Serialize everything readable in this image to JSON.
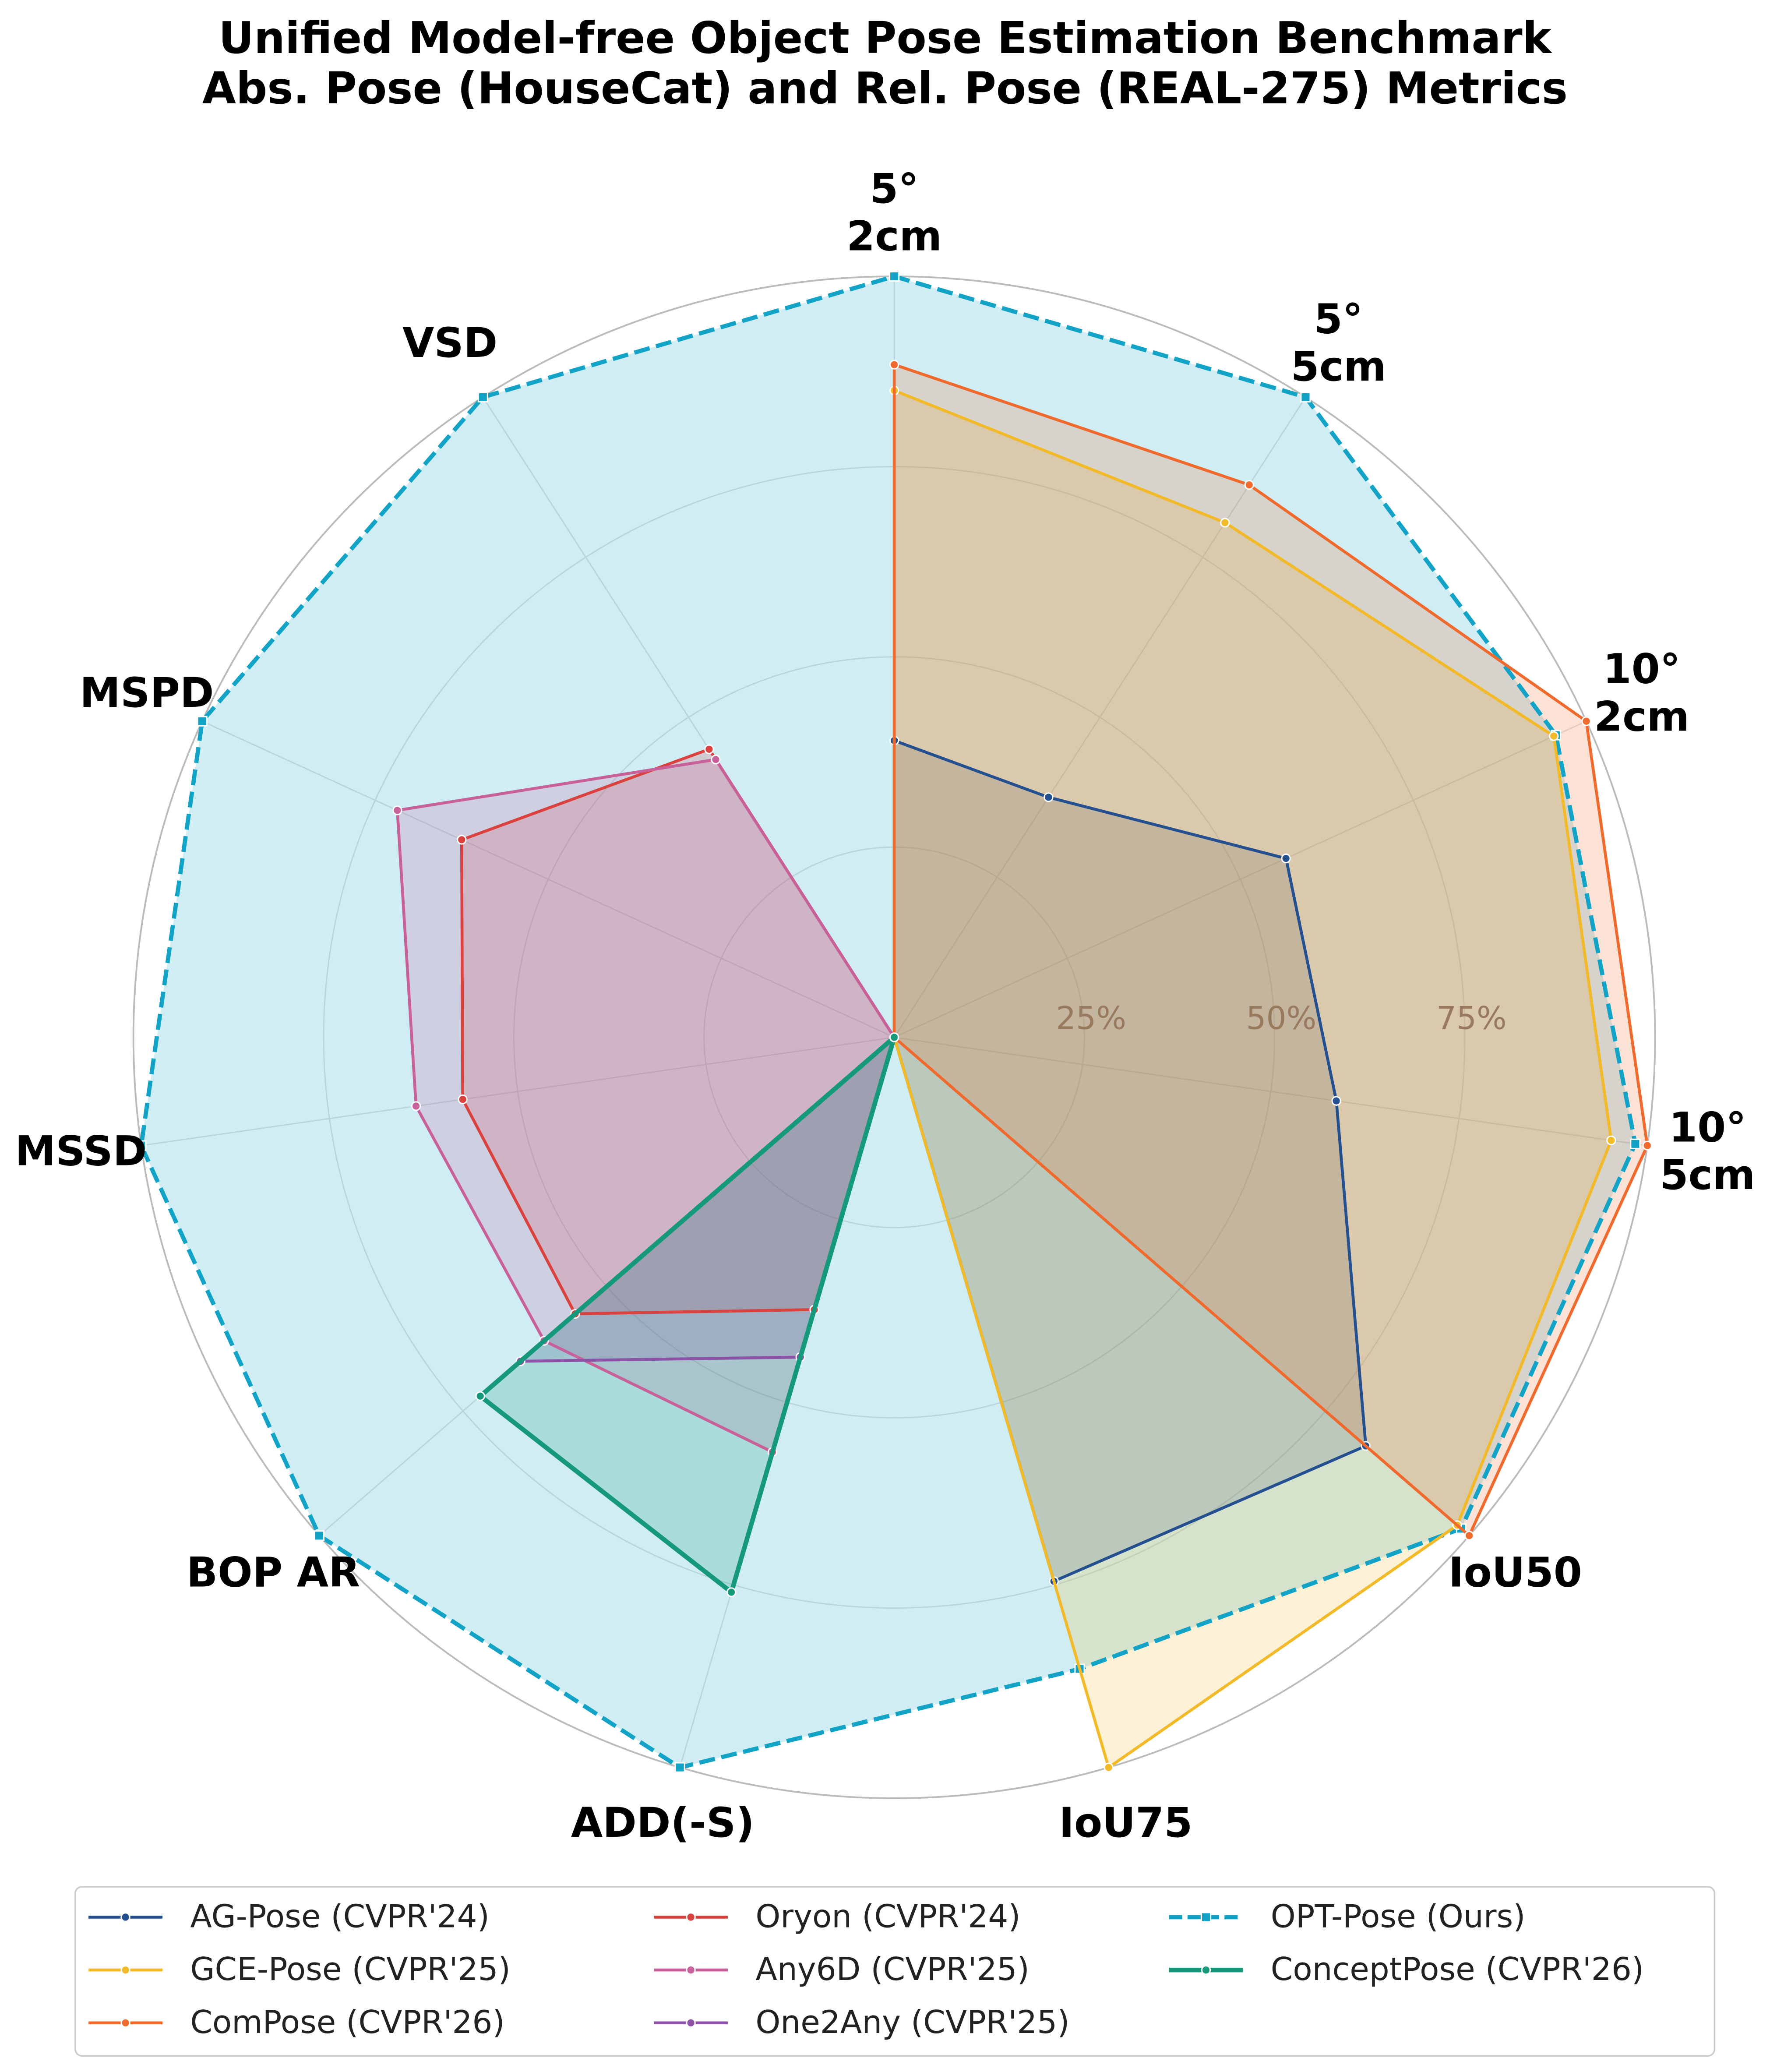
{
  "chart_data": {
    "type": "radar",
    "title": "Unified Model-free Object Pose Estimation Benchmark\nAbs. Pose (HouseCat) and Rel. Pose (REAL-275) Metrics",
    "categories": [
      "5°\n2cm",
      "5°\n5cm",
      "10°\n2cm",
      "10°\n5cm",
      "IoU50",
      "IoU75",
      "ADD(-S)",
      "BOP AR",
      "MSSD",
      "MSPD",
      "VSD"
    ],
    "ylim": [
      0,
      100
    ],
    "yticks": [
      {
        "value": 25,
        "label": "25%"
      },
      {
        "value": 50,
        "label": "50%"
      },
      {
        "value": 75,
        "label": "75%"
      }
    ],
    "grid": true,
    "legend": "bottom",
    "series": [
      {
        "name": "AG-Pose (CVPR'24)",
        "color": "#24508f",
        "values": [
          39,
          37.5,
          56.6,
          58.7,
          82,
          74.5,
          0,
          0,
          0,
          0,
          0
        ]
      },
      {
        "name": "GCE-Pose (CVPR'25)",
        "color": "#f2b929",
        "values": [
          85,
          80.4,
          95.3,
          95.2,
          97.9,
          100,
          0,
          0,
          0,
          0,
          0
        ]
      },
      {
        "name": "ComPose (CVPR'26)",
        "color": "#ef6a2c",
        "values": [
          88.4,
          86.3,
          100,
          100,
          100,
          0,
          0,
          0,
          0,
          0,
          0
        ]
      },
      {
        "name": "Oryon (CVPR'24)",
        "color": "#d9423f",
        "values": [
          0,
          0,
          0,
          0,
          0,
          0,
          37.3,
          55.5,
          57.3,
          62.5,
          45
        ]
      },
      {
        "name": "Any6D (CVPR'25)",
        "color": "#c8609a",
        "values": [
          0,
          0,
          0,
          0,
          0,
          0,
          56.8,
          60.9,
          63.5,
          71.8,
          43.4
        ]
      },
      {
        "name": "One2Any (CVPR'25)",
        "color": "#8b52a8",
        "values": [
          0,
          0,
          0,
          0,
          0,
          0,
          43.8,
          65,
          0,
          0,
          0
        ]
      },
      {
        "name": "OPT-Pose (Ours)",
        "color": "#12a3c6",
        "dashed": true,
        "values": [
          100,
          100,
          95.6,
          98.4,
          98.6,
          86.5,
          100,
          100,
          100,
          100,
          100
        ]
      },
      {
        "name": "ConceptPose (CVPR'26)",
        "color": "#16997a",
        "thick": true,
        "values": [
          0,
          0,
          0,
          0,
          0,
          0,
          76,
          72,
          0,
          0,
          0
        ]
      }
    ]
  }
}
